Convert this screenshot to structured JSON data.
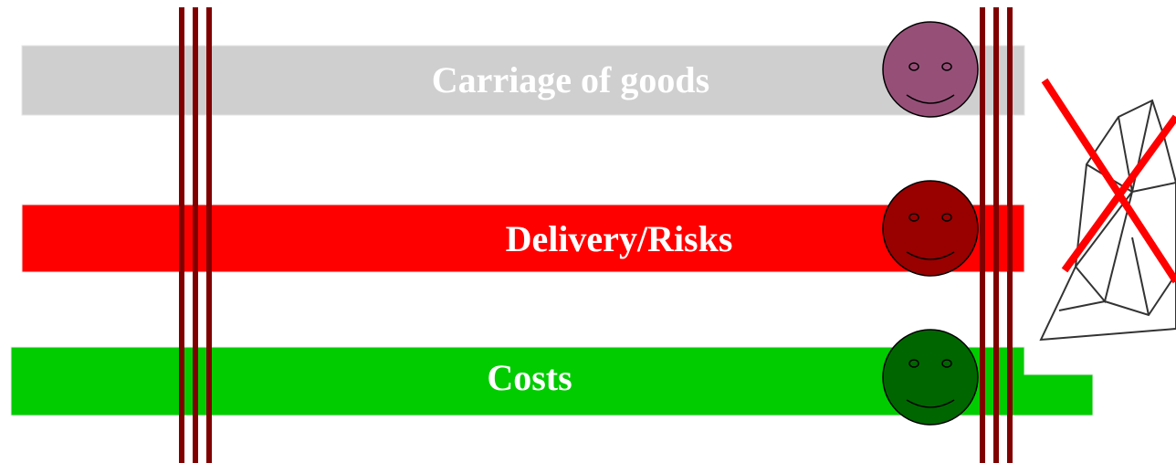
{
  "bars": [
    {
      "label": "Carriage of goods"
    },
    {
      "label": "Delivery/Risks"
    },
    {
      "label": "Costs"
    }
  ]
}
